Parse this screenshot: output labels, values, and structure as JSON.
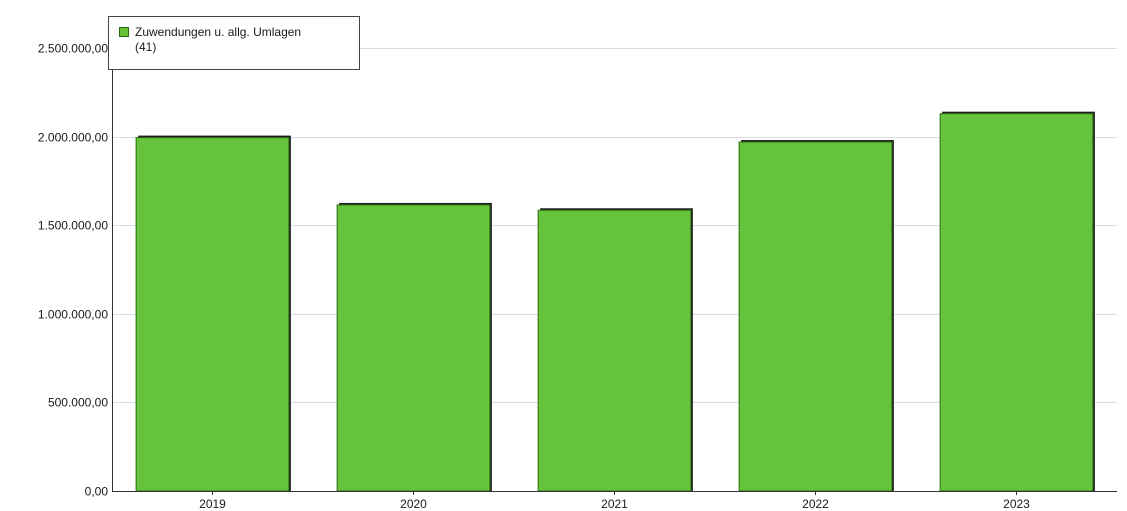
{
  "chart_data": {
    "type": "bar",
    "categories": [
      "2019",
      "2020",
      "2021",
      "2022",
      "2023"
    ],
    "series": [
      {
        "name": "Zuwendungen u. allg. Umlagen\n(41)",
        "values": [
          2000000,
          1620000,
          1590000,
          1975000,
          2135000
        ]
      }
    ],
    "title": "",
    "xlabel": "",
    "ylabel": "",
    "ylim": [
      0,
      2500000
    ],
    "yticks": [
      {
        "value": 0,
        "label": "0,00"
      },
      {
        "value": 500000,
        "label": "500.000,00"
      },
      {
        "value": 1000000,
        "label": "1.000.000,00"
      },
      {
        "value": 1500000,
        "label": "1.500.000,00"
      },
      {
        "value": 2000000,
        "label": "2.000.000,00"
      },
      {
        "value": 2500000,
        "label": "2.500.000,00"
      }
    ],
    "grid": true,
    "legend_position": "top-left",
    "colors": {
      "bar_fill": "#66c43c",
      "bar_edge": "#2e6e12",
      "bar_shadow": "#1f1f1f",
      "axis": "#333333",
      "grid": "#d9dde3"
    }
  }
}
